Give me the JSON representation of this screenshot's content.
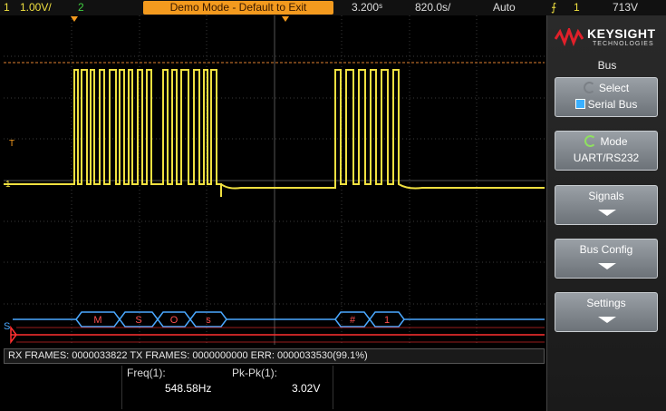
{
  "status_bar": {
    "ch1_num": "1",
    "ch1_scale": "1.00V/",
    "ch2_num": "2",
    "demo_banner": "Demo Mode - Default to Exit",
    "timebase": "3.200ˢ",
    "delay": "820.0s/",
    "trigger_mode": "Auto",
    "trigger_icon": "rising-edge-icon",
    "trigger_source": "1",
    "trigger_level": "713V"
  },
  "screen": {
    "marker_T": "T",
    "marker_1": "1",
    "marker_S": "S",
    "bus_labels": [
      "M",
      "S",
      "O",
      "s",
      "#",
      "1"
    ],
    "colors": {
      "ch1": "#f0e040",
      "bus": "#4aa8ff",
      "bus_error": "#ff3030",
      "grid": "#3a3a3a"
    }
  },
  "decode_list": {
    "text": "RX FRAMES: 0000033822  TX FRAMES: 0000000000  ERR: 0000033530(99.1%)"
  },
  "measurements": {
    "freq_label": "Freq(1):",
    "freq_value": "548.58Hz",
    "pkpk_label": "Pk-Pk(1):",
    "pkpk_value": "3.02V"
  },
  "panel": {
    "brand": "KEYSIGHT",
    "brand_sub": "TECHNOLOGIES",
    "title": "Bus",
    "softkeys": [
      {
        "label": "Select",
        "value": "Serial Bus"
      },
      {
        "label": "Mode",
        "value": "UART/RS232"
      },
      {
        "label": "Signals"
      },
      {
        "label": "Bus Config"
      },
      {
        "label": "Settings"
      }
    ]
  }
}
